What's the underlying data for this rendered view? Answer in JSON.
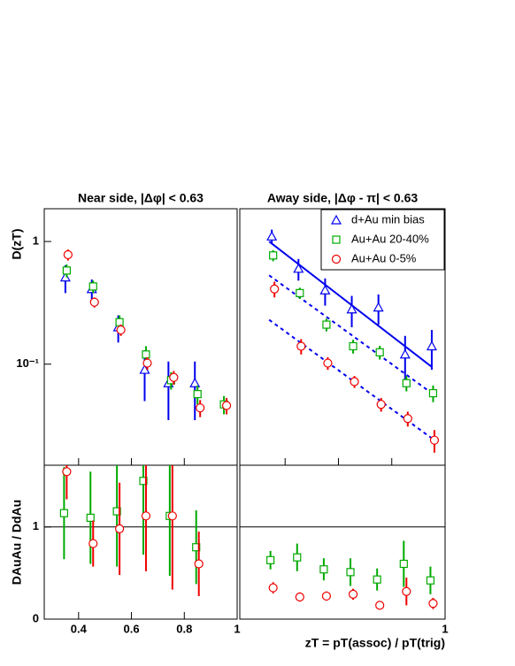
{
  "chart_data": [
    {
      "type": "scatter",
      "title": "Near side, |Δφ| < 0.63",
      "ylabel": "D(zT)",
      "log_y": true,
      "xlim": [
        0.27,
        1
      ],
      "ylim": [
        0.015,
        1.85
      ],
      "xticks": [
        0.4,
        0.6,
        0.8,
        1
      ],
      "yticks": [
        {
          "value": 0.1,
          "label": "10⁻¹"
        },
        1
      ],
      "series": [
        {
          "color": "#0000ee",
          "marker": "triangle",
          "x": [
            0.35,
            0.45,
            0.55,
            0.65,
            0.74,
            0.84
          ],
          "values": [
            0.51,
            0.41,
            0.2,
            0.09,
            0.07,
            0.07
          ],
          "errors": [
            0.13,
            0.08,
            0.05,
            0.04,
            0.035,
            0.035
          ]
        },
        {
          "color": "#00aa00",
          "marker": "square",
          "x": [
            0.355,
            0.455,
            0.555,
            0.655,
            0.75,
            0.85,
            0.95
          ],
          "values": [
            0.58,
            0.43,
            0.22,
            0.12,
            0.074,
            0.057,
            0.047
          ],
          "errors": [
            0.07,
            0.05,
            0.03,
            0.02,
            0.012,
            0.01,
            0.008
          ]
        },
        {
          "color": "#ee0000",
          "marker": "circle",
          "x": [
            0.36,
            0.46,
            0.56,
            0.66,
            0.76,
            0.86,
            0.96
          ],
          "values": [
            0.78,
            0.32,
            0.19,
            0.102,
            0.078,
            0.044,
            0.046
          ],
          "errors": [
            0.08,
            0.03,
            0.02,
            0.012,
            0.01,
            0.007,
            0.007
          ]
        }
      ]
    },
    {
      "type": "scatter",
      "title": "Away side, |Δφ - π| < 0.63",
      "log_y": true,
      "legend": "upper right",
      "xlim": [
        0.23,
        1
      ],
      "ylim": [
        0.015,
        1.85
      ],
      "xticks": [
        0.4,
        0.6,
        0.8,
        1
      ],
      "series": [
        {
          "name": "d+Au min bias",
          "color": "#0000ee",
          "marker": "triangle",
          "x": [
            0.35,
            0.45,
            0.55,
            0.65,
            0.75,
            0.85,
            0.95
          ],
          "values": [
            1.1,
            0.6,
            0.4,
            0.28,
            0.29,
            0.12,
            0.14
          ],
          "errors": [
            0.15,
            0.12,
            0.1,
            0.08,
            0.08,
            0.05,
            0.05
          ]
        },
        {
          "name": "Au+Au 20-40%",
          "color": "#00aa00",
          "marker": "square",
          "x": [
            0.355,
            0.455,
            0.555,
            0.655,
            0.755,
            0.855,
            0.955
          ],
          "values": [
            0.77,
            0.38,
            0.21,
            0.14,
            0.125,
            0.07,
            0.058
          ],
          "errors": [
            0.08,
            0.04,
            0.025,
            0.018,
            0.016,
            0.01,
            0.009
          ]
        },
        {
          "name": "Au+Au 0-5%",
          "color": "#ee0000",
          "marker": "circle",
          "x": [
            0.36,
            0.46,
            0.56,
            0.66,
            0.76,
            0.86,
            0.96
          ],
          "values": [
            0.41,
            0.14,
            0.102,
            0.072,
            0.047,
            0.036,
            0.024
          ],
          "errors": [
            0.06,
            0.02,
            0.012,
            0.008,
            0.006,
            0.005,
            0.005
          ]
        }
      ],
      "fits": [
        {
          "color": "#0000ee",
          "dash": false,
          "x": [
            0.34,
            0.95
          ],
          "values": [
            1.0,
            0.095
          ]
        },
        {
          "color": "#0000ee",
          "dash": true,
          "x": [
            0.34,
            0.96
          ],
          "values": [
            0.53,
            0.056
          ]
        },
        {
          "color": "#0000ee",
          "dash": true,
          "x": [
            0.34,
            0.96
          ],
          "values": [
            0.23,
            0.024
          ]
        }
      ]
    },
    {
      "type": "scatter",
      "ylabel": "DAuAu / DdAu",
      "log_y": false,
      "hline": 1,
      "xlim": [
        0.27,
        1
      ],
      "ylim": [
        0,
        1.67
      ],
      "xticks": [
        0.4,
        0.6,
        0.8,
        1
      ],
      "yticks": [
        0,
        1
      ],
      "series": [
        {
          "color": "#00aa00",
          "marker": "square",
          "x": [
            0.345,
            0.445,
            0.545,
            0.645,
            0.745,
            0.845
          ],
          "values": [
            1.15,
            1.1,
            1.17,
            1.5,
            1.12,
            0.78
          ],
          "errors": [
            0.5,
            0.5,
            0.6,
            0.8,
            0.65,
            0.4
          ]
        },
        {
          "color": "#ee0000",
          "marker": "circle",
          "x": [
            0.355,
            0.455,
            0.555,
            0.655,
            0.755,
            0.855
          ],
          "values": [
            1.6,
            0.82,
            0.98,
            1.12,
            1.12,
            0.6
          ],
          "errors": [
            0.3,
            0.25,
            0.5,
            0.6,
            0.8,
            0.35
          ]
        }
      ]
    },
    {
      "type": "scatter",
      "xlabel": "zT = pT(assoc) / pT(trig)",
      "log_y": false,
      "hline": 1,
      "xlim": [
        0.23,
        1
      ],
      "ylim": [
        0,
        1.67
      ],
      "xticks": [
        1
      ],
      "series": [
        {
          "color": "#00aa00",
          "marker": "square",
          "x": [
            0.345,
            0.445,
            0.545,
            0.645,
            0.745,
            0.845,
            0.945
          ],
          "values": [
            0.64,
            0.67,
            0.54,
            0.51,
            0.43,
            0.6,
            0.42
          ],
          "errors": [
            0.1,
            0.15,
            0.12,
            0.15,
            0.12,
            0.25,
            0.15
          ]
        },
        {
          "color": "#ee0000",
          "marker": "circle",
          "x": [
            0.355,
            0.455,
            0.555,
            0.655,
            0.755,
            0.855,
            0.955
          ],
          "values": [
            0.34,
            0.24,
            0.25,
            0.27,
            0.15,
            0.3,
            0.17
          ],
          "errors": [
            0.06,
            0.05,
            0.05,
            0.06,
            0.04,
            0.15,
            0.06
          ]
        }
      ]
    }
  ]
}
